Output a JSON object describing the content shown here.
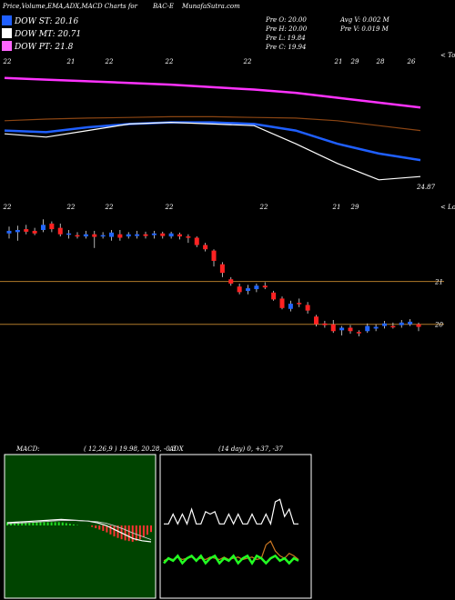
{
  "header": {
    "title": "Price,Volume,EMA,ADX,MACD Charts for",
    "ticker": "BAC-E",
    "site": "MunafaSutra.com"
  },
  "legend": [
    {
      "label": "DOW ST: 20.16",
      "color": "#1f5fff"
    },
    {
      "label": "DOW MT: 20.71",
      "color": "#ffffff"
    },
    {
      "label": "DOW PT: 21.8",
      "color": "#ff66ff"
    }
  ],
  "quote": {
    "open": "Pre  O: 20.00",
    "high": "Pre  H: 20.00",
    "low": "Pre  L: 19.84",
    "close": "Pre  C: 19.94",
    "avg_volume": "Avg V: 0.002  M",
    "prev_volume": "Pre  V: 0.019 M"
  },
  "chart_data": [
    {
      "type": "line",
      "name": "ema-panel",
      "date_labels_top": [
        "22",
        "21",
        "22",
        "22",
        "22",
        "21",
        "29",
        "28",
        "26"
      ],
      "date_labels_bottom": [
        "22",
        "22",
        "22",
        "22",
        "22",
        "21",
        "29"
      ],
      "right_label_top": "< Topo",
      "right_label_bottom": "< Lows",
      "last_value_label": "24.87",
      "series": [
        {
          "color": "#ff33ff",
          "values": [
            25.9,
            25.85,
            25.8,
            25.75,
            25.7,
            25.62,
            25.55,
            25.45,
            25.3,
            25.15,
            25.0
          ]
        },
        {
          "color": "#8b4513",
          "values": [
            24.6,
            24.65,
            24.68,
            24.7,
            24.72,
            24.72,
            24.7,
            24.68,
            24.6,
            24.45,
            24.3
          ]
        },
        {
          "color": "#1f5fff",
          "values": [
            24.3,
            24.25,
            24.4,
            24.5,
            24.55,
            24.55,
            24.5,
            24.3,
            23.9,
            23.6,
            23.4
          ]
        },
        {
          "color": "#ffffff",
          "values": [
            24.2,
            24.1,
            24.3,
            24.5,
            24.55,
            24.5,
            24.45,
            23.9,
            23.3,
            22.8,
            22.9
          ]
        }
      ]
    },
    {
      "type": "candlestick",
      "name": "price-panel",
      "hlines": [
        {
          "value": 21,
          "label": "21",
          "color": "#b07a2a"
        },
        {
          "value": 20,
          "label": "20",
          "color": "#b07a2a"
        }
      ],
      "candles": [
        {
          "o": 22.12,
          "c": 22.18,
          "h": 22.28,
          "l": 22.0
        },
        {
          "o": 22.15,
          "c": 22.2,
          "h": 22.3,
          "l": 21.95
        },
        {
          "o": 22.22,
          "c": 22.16,
          "h": 22.32,
          "l": 22.1
        },
        {
          "o": 22.18,
          "c": 22.12,
          "h": 22.25,
          "l": 22.08
        },
        {
          "o": 22.2,
          "c": 22.32,
          "h": 22.45,
          "l": 22.15
        },
        {
          "o": 22.35,
          "c": 22.22,
          "h": 22.4,
          "l": 22.15
        },
        {
          "o": 22.25,
          "c": 22.1,
          "h": 22.35,
          "l": 22.05
        },
        {
          "o": 22.1,
          "c": 22.12,
          "h": 22.2,
          "l": 22.0
        },
        {
          "o": 22.08,
          "c": 22.06,
          "h": 22.15,
          "l": 22.0
        },
        {
          "o": 22.05,
          "c": 22.1,
          "h": 22.18,
          "l": 22.0
        },
        {
          "o": 22.1,
          "c": 22.04,
          "h": 22.18,
          "l": 21.78
        },
        {
          "o": 22.05,
          "c": 22.08,
          "h": 22.15,
          "l": 22.0
        },
        {
          "o": 22.04,
          "c": 22.14,
          "h": 22.2,
          "l": 21.95
        },
        {
          "o": 22.1,
          "c": 22.02,
          "h": 22.2,
          "l": 21.95
        },
        {
          "o": 22.05,
          "c": 22.1,
          "h": 22.15,
          "l": 22.0
        },
        {
          "o": 22.06,
          "c": 22.1,
          "h": 22.18,
          "l": 22.0
        },
        {
          "o": 22.1,
          "c": 22.06,
          "h": 22.16,
          "l": 22.0
        },
        {
          "o": 22.08,
          "c": 22.12,
          "h": 22.18,
          "l": 22.0
        },
        {
          "o": 22.12,
          "c": 22.06,
          "h": 22.16,
          "l": 22.0
        },
        {
          "o": 22.05,
          "c": 22.12,
          "h": 22.16,
          "l": 22.0
        },
        {
          "o": 22.1,
          "c": 22.05,
          "h": 22.14,
          "l": 21.98
        },
        {
          "o": 22.05,
          "c": 22.02,
          "h": 22.1,
          "l": 21.9
        },
        {
          "o": 22.02,
          "c": 21.85,
          "h": 22.05,
          "l": 21.8
        },
        {
          "o": 21.85,
          "c": 21.75,
          "h": 21.9,
          "l": 21.7
        },
        {
          "o": 21.72,
          "c": 21.48,
          "h": 21.75,
          "l": 21.35
        },
        {
          "o": 21.4,
          "c": 21.2,
          "h": 21.45,
          "l": 21.1
        },
        {
          "o": 21.05,
          "c": 20.95,
          "h": 21.1,
          "l": 20.9
        },
        {
          "o": 20.88,
          "c": 20.75,
          "h": 20.95,
          "l": 20.7
        },
        {
          "o": 20.78,
          "c": 20.84,
          "h": 20.92,
          "l": 20.7
        },
        {
          "o": 20.82,
          "c": 20.9,
          "h": 20.95,
          "l": 20.75
        },
        {
          "o": 20.9,
          "c": 20.86,
          "h": 20.98,
          "l": 20.82
        },
        {
          "o": 20.74,
          "c": 20.58,
          "h": 20.78,
          "l": 20.55
        },
        {
          "o": 20.6,
          "c": 20.38,
          "h": 20.65,
          "l": 20.35
        },
        {
          "o": 20.36,
          "c": 20.48,
          "h": 20.55,
          "l": 20.3
        },
        {
          "o": 20.5,
          "c": 20.48,
          "h": 20.6,
          "l": 20.4
        },
        {
          "o": 20.45,
          "c": 20.32,
          "h": 20.52,
          "l": 20.25
        },
        {
          "o": 20.18,
          "c": 20.0,
          "h": 20.22,
          "l": 19.95
        },
        {
          "o": 20.02,
          "c": 19.98,
          "h": 20.08,
          "l": 19.92
        },
        {
          "o": 20.0,
          "c": 19.84,
          "h": 20.1,
          "l": 19.8
        },
        {
          "o": 19.86,
          "c": 19.92,
          "h": 19.96,
          "l": 19.74
        },
        {
          "o": 19.92,
          "c": 19.84,
          "h": 19.98,
          "l": 19.78
        },
        {
          "o": 19.82,
          "c": 19.8,
          "h": 19.86,
          "l": 19.72
        },
        {
          "o": 19.84,
          "c": 19.96,
          "h": 20.02,
          "l": 19.8
        },
        {
          "o": 19.9,
          "c": 19.94,
          "h": 20.0,
          "l": 19.84
        },
        {
          "o": 19.96,
          "c": 20.02,
          "h": 20.08,
          "l": 19.9
        },
        {
          "o": 19.96,
          "c": 19.94,
          "h": 20.04,
          "l": 19.9
        },
        {
          "o": 19.98,
          "c": 20.04,
          "h": 20.1,
          "l": 19.92
        },
        {
          "o": 20.0,
          "c": 20.06,
          "h": 20.12,
          "l": 19.96
        },
        {
          "o": 20.0,
          "c": 19.94,
          "h": 20.04,
          "l": 19.84
        }
      ]
    },
    {
      "type": "line",
      "name": "macd-panel",
      "title": "MACD:",
      "params": "( 12,26,9 ) 19.98,  20.28,  -0.3",
      "macd": [
        0.05,
        0.06,
        0.07,
        0.08,
        0.09,
        0.1,
        0.11,
        0.1,
        0.09,
        0.08,
        0.05,
        0.0,
        -0.08,
        -0.16,
        -0.24,
        -0.28,
        -0.3
      ],
      "signal": [
        0.03,
        0.04,
        0.05,
        0.06,
        0.07,
        0.08,
        0.09,
        0.09,
        0.09,
        0.08,
        0.07,
        0.04,
        -0.01,
        -0.07,
        -0.14,
        -0.2,
        -0.26
      ]
    },
    {
      "type": "line",
      "name": "adx-panel",
      "title": "ADX",
      "params": "(14  day) 0,  +37,  -37",
      "adx_white": [
        62,
        62,
        70,
        62,
        70,
        62,
        74,
        62,
        62,
        72,
        70,
        72,
        62,
        62,
        70,
        62,
        70,
        62,
        62,
        70,
        62,
        62,
        70,
        62,
        80,
        82,
        68,
        74,
        62,
        62
      ],
      "plus_green": [
        30,
        34,
        32,
        36,
        30,
        34,
        36,
        32,
        36,
        30,
        34,
        36,
        30,
        34,
        32,
        36,
        30,
        34,
        36,
        30,
        36,
        34,
        30,
        34,
        36,
        32,
        34,
        30,
        34,
        32
      ],
      "minus_orange": [
        32,
        34,
        33,
        35,
        33,
        34,
        35,
        33,
        34,
        33,
        35,
        34,
        33,
        35,
        33,
        34,
        35,
        33,
        34,
        35,
        33,
        34,
        45,
        48,
        40,
        36,
        34,
        38,
        36,
        33
      ]
    }
  ]
}
